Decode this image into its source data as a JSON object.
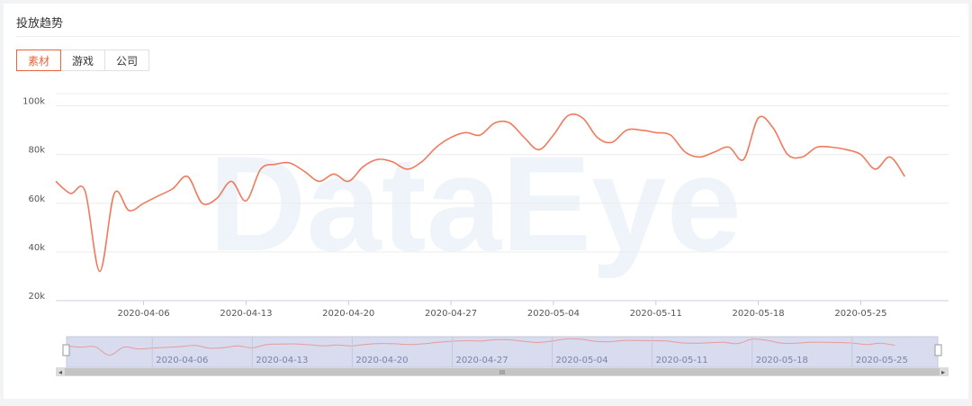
{
  "header": {
    "title": "投放趋势"
  },
  "tabs": [
    {
      "label": "素材",
      "active": true
    },
    {
      "label": "游戏",
      "active": false
    },
    {
      "label": "公司",
      "active": false
    }
  ],
  "watermark": "DataEye",
  "colors": {
    "line": "#f07a5e",
    "accent": "#e9633d",
    "slider_fill": "#d8dcee",
    "grid": "#ececec"
  },
  "chart_data": {
    "type": "line",
    "title": "",
    "xlabel": "",
    "ylabel": "",
    "x_range": [
      "2020-03-31",
      "2020-05-31"
    ],
    "ylim": [
      20000,
      105000
    ],
    "y_ticks": [
      20000,
      40000,
      60000,
      80000,
      100000
    ],
    "y_tick_labels": [
      "20k",
      "40k",
      "60k",
      "80k",
      "100k"
    ],
    "x_ticks": [
      "2020-04-06",
      "2020-04-13",
      "2020-04-20",
      "2020-04-27",
      "2020-05-04",
      "2020-05-11",
      "2020-05-18",
      "2020-05-25"
    ],
    "grid": true,
    "legend": "none",
    "series": [
      {
        "x": [
          "2020-03-31",
          "2020-04-01",
          "2020-04-02",
          "2020-04-03",
          "2020-04-04",
          "2020-04-05",
          "2020-04-06",
          "2020-04-07",
          "2020-04-08",
          "2020-04-09",
          "2020-04-10",
          "2020-04-11",
          "2020-04-12",
          "2020-04-13",
          "2020-04-14",
          "2020-04-15",
          "2020-04-16",
          "2020-04-17",
          "2020-04-18",
          "2020-04-19",
          "2020-04-20",
          "2020-04-21",
          "2020-04-22",
          "2020-04-23",
          "2020-04-24",
          "2020-04-25",
          "2020-04-26",
          "2020-04-27",
          "2020-04-28",
          "2020-04-29",
          "2020-04-30",
          "2020-05-01",
          "2020-05-02",
          "2020-05-03",
          "2020-05-04",
          "2020-05-05",
          "2020-05-06",
          "2020-05-07",
          "2020-05-08",
          "2020-05-09",
          "2020-05-10",
          "2020-05-11",
          "2020-05-12",
          "2020-05-13",
          "2020-05-14",
          "2020-05-15",
          "2020-05-16",
          "2020-05-17",
          "2020-05-18",
          "2020-05-19",
          "2020-05-20",
          "2020-05-21",
          "2020-05-22",
          "2020-05-23",
          "2020-05-24",
          "2020-05-25",
          "2020-05-26",
          "2020-05-27",
          "2020-05-28",
          "2020-05-29",
          "2020-05-30",
          "2020-05-31"
        ],
        "values": [
          69000,
          64000,
          65000,
          32000,
          64000,
          57000,
          60000,
          63000,
          66000,
          71000,
          60000,
          62000,
          69000,
          61000,
          74000,
          76000,
          76500,
          73000,
          69000,
          72000,
          69000,
          75000,
          78000,
          77000,
          74000,
          77000,
          83000,
          87000,
          89000,
          88000,
          93000,
          93000,
          87000,
          82000,
          88000,
          96000,
          95000,
          87000,
          85000,
          90000,
          90000,
          89000,
          88000,
          81000,
          79000,
          81000,
          83000,
          78000,
          95000,
          91000,
          80000,
          79000,
          83000,
          83000,
          82000,
          80000,
          74000,
          79000,
          71000,
          null,
          null,
          null
        ]
      }
    ]
  },
  "slider": {
    "handle_label": "III",
    "left_arrow": "◂",
    "right_arrow": "▸"
  }
}
